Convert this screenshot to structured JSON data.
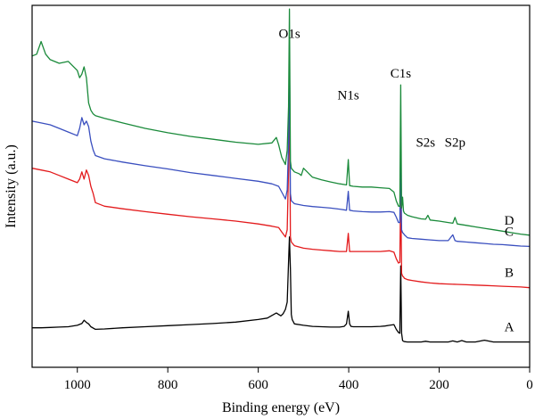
{
  "chart_data": {
    "type": "line",
    "title": "",
    "xlabel": "Binding energy (eV)",
    "ylabel": "Intensity (a.u.)",
    "xlim": [
      1100,
      0
    ],
    "x_reversed": true,
    "ylim": [
      0,
      100
    ],
    "x_ticks": [
      1000,
      800,
      600,
      400,
      200,
      0
    ],
    "grid": false,
    "legend": "none",
    "peak_annotations": [
      {
        "text": "O1s",
        "x": 531,
        "y": 91
      },
      {
        "text": "N1s",
        "x": 401,
        "y": 74
      },
      {
        "text": "C1s",
        "x": 285,
        "y": 80
      },
      {
        "text": "S2s",
        "x": 230,
        "y": 61
      },
      {
        "text": "S2p",
        "x": 165,
        "y": 61
      }
    ],
    "series": [
      {
        "name": "A",
        "color": "#000000",
        "x": [
          1100,
          1080,
          1060,
          1040,
          1020,
          1000,
          990,
          985,
          980,
          975,
          970,
          960,
          940,
          900,
          850,
          800,
          750,
          700,
          650,
          600,
          580,
          560,
          550,
          545,
          540,
          536,
          533,
          531,
          529,
          527,
          525,
          520,
          500,
          480,
          460,
          440,
          420,
          410,
          405,
          401,
          398,
          395,
          390,
          370,
          350,
          330,
          320,
          310,
          300,
          295,
          290,
          287,
          285,
          283,
          281,
          279,
          277,
          270,
          260,
          240,
          230,
          220,
          200,
          180,
          170,
          160,
          150,
          140,
          120,
          100,
          80,
          60,
          40,
          20,
          0
        ],
        "y": [
          10.9,
          10.9,
          11.0,
          11.1,
          11.2,
          11.6,
          12.1,
          13.0,
          12.4,
          12.0,
          11.2,
          10.5,
          10.6,
          10.9,
          11.2,
          11.5,
          11.8,
          12.1,
          12.5,
          13.2,
          13.6,
          15.0,
          14.2,
          14.8,
          16.0,
          18.0,
          29.0,
          36.0,
          27.0,
          14.6,
          13.2,
          12.0,
          11.6,
          11.3,
          11.2,
          11.1,
          11.1,
          11.3,
          12.0,
          15.5,
          12.0,
          11.3,
          11.2,
          11.2,
          11.2,
          11.3,
          11.4,
          11.6,
          11.8,
          10.5,
          9.6,
          9.4,
          28.0,
          9.4,
          7.4,
          7.2,
          7.1,
          7.0,
          7.0,
          7.0,
          7.2,
          7.0,
          7.0,
          7.0,
          7.3,
          7.0,
          7.4,
          7.0,
          7.0,
          7.5,
          7.0,
          7.0,
          7.0,
          7.0,
          7.0
        ]
      },
      {
        "name": "B",
        "color": "#e31a1c",
        "x": [
          1100,
          1080,
          1060,
          1040,
          1020,
          1000,
          995,
          990,
          985,
          980,
          975,
          970,
          965,
          960,
          940,
          900,
          850,
          800,
          750,
          700,
          650,
          600,
          570,
          555,
          548,
          540,
          536,
          533,
          531,
          529,
          527,
          520,
          500,
          480,
          460,
          440,
          420,
          405,
          401,
          398,
          390,
          370,
          350,
          330,
          310,
          300,
          295,
          290,
          287,
          285,
          283,
          281,
          279,
          277,
          270,
          260,
          240,
          220,
          200,
          180,
          160,
          140,
          120,
          100,
          80,
          60,
          40,
          20,
          0
        ],
        "y": [
          55.0,
          54.5,
          54.0,
          53.0,
          52.0,
          51.0,
          52.0,
          54.0,
          52.0,
          54.5,
          53.0,
          50.0,
          48.0,
          45.5,
          44.5,
          43.8,
          43.0,
          42.3,
          41.6,
          41.0,
          40.4,
          39.6,
          39.0,
          38.6,
          37.4,
          36.0,
          38.0,
          55.0,
          80.0,
          36.0,
          34.6,
          33.6,
          32.9,
          32.6,
          32.4,
          32.2,
          32.0,
          32.0,
          37.0,
          32.0,
          32.0,
          32.0,
          32.0,
          32.0,
          32.2,
          31.8,
          30.0,
          28.8,
          29.0,
          49.0,
          26.0,
          25.2,
          25.0,
          24.6,
          24.2,
          24.0,
          23.6,
          23.3,
          23.1,
          23.0,
          22.9,
          22.8,
          22.7,
          22.6,
          22.5,
          22.4,
          22.3,
          22.2,
          22.0
        ]
      },
      {
        "name": "C",
        "color": "#3a4fbf",
        "x": [
          1100,
          1080,
          1060,
          1040,
          1020,
          1000,
          995,
          990,
          985,
          980,
          975,
          970,
          965,
          960,
          940,
          900,
          850,
          800,
          750,
          700,
          650,
          600,
          570,
          555,
          548,
          540,
          536,
          533,
          531,
          529,
          527,
          520,
          500,
          480,
          460,
          440,
          420,
          405,
          401,
          398,
          390,
          370,
          350,
          330,
          310,
          300,
          295,
          290,
          287,
          285,
          283,
          281,
          279,
          277,
          270,
          260,
          240,
          220,
          200,
          180,
          170,
          165,
          160,
          140,
          120,
          100,
          80,
          60,
          40,
          20,
          0
        ],
        "y": [
          68.0,
          67.5,
          67.0,
          66.0,
          65.0,
          64.0,
          66.0,
          69.0,
          67.0,
          68.0,
          66.5,
          62.5,
          60.0,
          58.5,
          57.6,
          56.7,
          55.7,
          54.8,
          53.8,
          53.0,
          52.2,
          51.4,
          50.7,
          50.0,
          48.4,
          46.5,
          49.0,
          62.0,
          89.0,
          48.0,
          46.0,
          45.2,
          44.7,
          44.4,
          44.2,
          44.0,
          43.7,
          43.4,
          48.6,
          43.4,
          43.2,
          43.0,
          42.9,
          42.9,
          43.0,
          42.8,
          41.5,
          40.0,
          40.0,
          62.0,
          38.0,
          37.2,
          37.0,
          36.6,
          35.8,
          35.6,
          35.4,
          35.2,
          35.0,
          35.0,
          36.6,
          35.0,
          34.8,
          34.6,
          34.4,
          34.2,
          34.0,
          33.9,
          33.7,
          33.5,
          33.4
        ]
      },
      {
        "name": "D",
        "color": "#1a8a3a",
        "x": [
          1100,
          1090,
          1080,
          1070,
          1060,
          1040,
          1020,
          1000,
          995,
          990,
          985,
          980,
          975,
          970,
          965,
          960,
          940,
          900,
          850,
          800,
          750,
          700,
          650,
          600,
          570,
          560,
          555,
          548,
          540,
          536,
          533,
          531,
          529,
          527,
          520,
          510,
          505,
          500,
          480,
          460,
          440,
          420,
          405,
          401,
          398,
          390,
          370,
          350,
          330,
          310,
          300,
          295,
          290,
          287,
          285,
          283,
          281,
          279,
          277,
          270,
          260,
          240,
          230,
          225,
          220,
          200,
          180,
          170,
          165,
          160,
          140,
          120,
          100,
          80,
          60,
          40,
          20,
          0
        ],
        "y": [
          86.0,
          86.5,
          90.0,
          86.5,
          85.0,
          84.0,
          84.5,
          82.0,
          80.0,
          81.0,
          83.0,
          80.0,
          73.0,
          71.0,
          70.0,
          69.5,
          68.8,
          67.5,
          66.0,
          64.8,
          63.8,
          63.0,
          62.2,
          61.6,
          62.0,
          63.5,
          61.5,
          58.0,
          56.0,
          60.0,
          72.0,
          99.0,
          57.0,
          55.0,
          54.0,
          53.5,
          53.0,
          55.0,
          52.5,
          51.8,
          51.2,
          50.7,
          50.4,
          57.4,
          50.2,
          50.0,
          49.8,
          49.8,
          49.6,
          49.4,
          48.4,
          46.0,
          44.5,
          44.5,
          78.0,
          44.0,
          47.0,
          43.2,
          42.6,
          42.0,
          41.6,
          41.0,
          40.9,
          42.0,
          40.7,
          40.4,
          40.0,
          39.8,
          41.4,
          39.6,
          39.2,
          38.8,
          38.4,
          38.0,
          37.6,
          37.2,
          36.8,
          36.5
        ]
      }
    ]
  }
}
